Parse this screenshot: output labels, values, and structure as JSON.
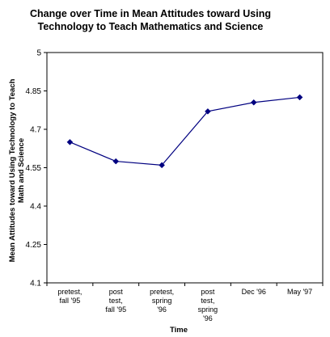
{
  "chart_data": {
    "type": "line",
    "title": [
      "Change over Time in Mean Attitudes toward Using",
      "Technology to Teach Mathematics and Science"
    ],
    "xlabel": "Time",
    "ylabel": [
      "Mean Attitudes toward Using Technology to Teach",
      "Math and Science"
    ],
    "ylim": [
      4.1,
      5
    ],
    "yticks": [
      "5",
      "4.85",
      "4.7",
      "4.55",
      "4.4",
      "4.25",
      "4.1"
    ],
    "ytick_values": [
      5,
      4.85,
      4.7,
      4.55,
      4.4,
      4.25,
      4.1
    ],
    "categories": [
      [
        "pretest,",
        "fall '95"
      ],
      [
        "post",
        "test,",
        "fall '95"
      ],
      [
        "pretest,",
        "spring",
        "'96"
      ],
      [
        "post",
        "test,",
        "spring",
        "'96"
      ],
      [
        "Dec '96"
      ],
      [
        "May '97"
      ]
    ],
    "values": [
      4.65,
      4.575,
      4.56,
      4.77,
      4.805,
      4.825
    ],
    "grid": false,
    "legend": "none",
    "line_color": "#000080",
    "marker": "diamond"
  }
}
